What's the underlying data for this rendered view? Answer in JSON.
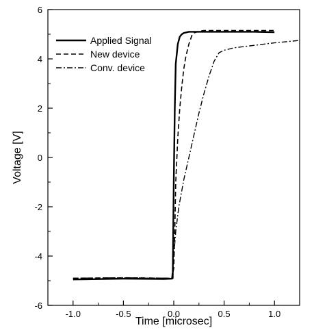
{
  "chart_data": {
    "type": "line",
    "xlabel": "Time [microsec]",
    "ylabel": "Voltage [V]",
    "xlim": [
      -1.25,
      1.25
    ],
    "ylim": [
      -6,
      6
    ],
    "xticks": [
      -1.0,
      -0.5,
      0.0,
      0.5,
      1.0
    ],
    "xtick_labels": [
      "-1.0",
      "-0.5",
      "0.0",
      "0.5",
      "1.0"
    ],
    "yticks": [
      -6,
      -4,
      -2,
      0,
      2,
      4,
      6
    ],
    "ytick_labels": [
      "-6",
      "-4",
      "-2",
      "0",
      "2",
      "4",
      "6"
    ],
    "grid": false,
    "legend_position": "top-left",
    "series": [
      {
        "name": "Applied Signal",
        "style": "solid",
        "x": [
          -1.0,
          -0.5,
          -0.1,
          -0.02,
          -0.01,
          0.0,
          0.01,
          0.02,
          0.04,
          0.06,
          0.08,
          0.1,
          0.15,
          0.2,
          0.3,
          0.5,
          0.8,
          1.0
        ],
        "y": [
          -4.95,
          -4.92,
          -4.93,
          -4.92,
          -4.9,
          -1.0,
          2.0,
          3.8,
          4.6,
          4.9,
          5.0,
          5.05,
          5.1,
          5.1,
          5.1,
          5.1,
          5.1,
          5.08
        ]
      },
      {
        "name": "New device",
        "style": "dashed",
        "x": [
          -1.0,
          -0.5,
          -0.02,
          0.0,
          0.01,
          0.02,
          0.04,
          0.06,
          0.08,
          0.1,
          0.12,
          0.15,
          0.18,
          0.2,
          0.25,
          0.3,
          0.5,
          0.8,
          1.0
        ],
        "y": [
          -4.9,
          -4.88,
          -4.9,
          -4.5,
          -3.0,
          -1.0,
          0.8,
          2.0,
          2.9,
          3.6,
          4.1,
          4.6,
          4.95,
          5.05,
          5.12,
          5.15,
          5.15,
          5.15,
          5.15
        ]
      },
      {
        "name": "Conv. device",
        "style": "dashdot",
        "x": [
          -1.0,
          -0.5,
          -0.02,
          0.0,
          0.02,
          0.05,
          0.1,
          0.15,
          0.2,
          0.25,
          0.3,
          0.35,
          0.4,
          0.45,
          0.5,
          0.6,
          0.8,
          1.0,
          1.25
        ],
        "y": [
          -4.9,
          -4.88,
          -4.9,
          -4.0,
          -3.0,
          -2.0,
          -0.9,
          0.0,
          0.9,
          1.8,
          2.6,
          3.3,
          3.9,
          4.25,
          4.35,
          4.45,
          4.55,
          4.65,
          4.75
        ]
      }
    ]
  }
}
